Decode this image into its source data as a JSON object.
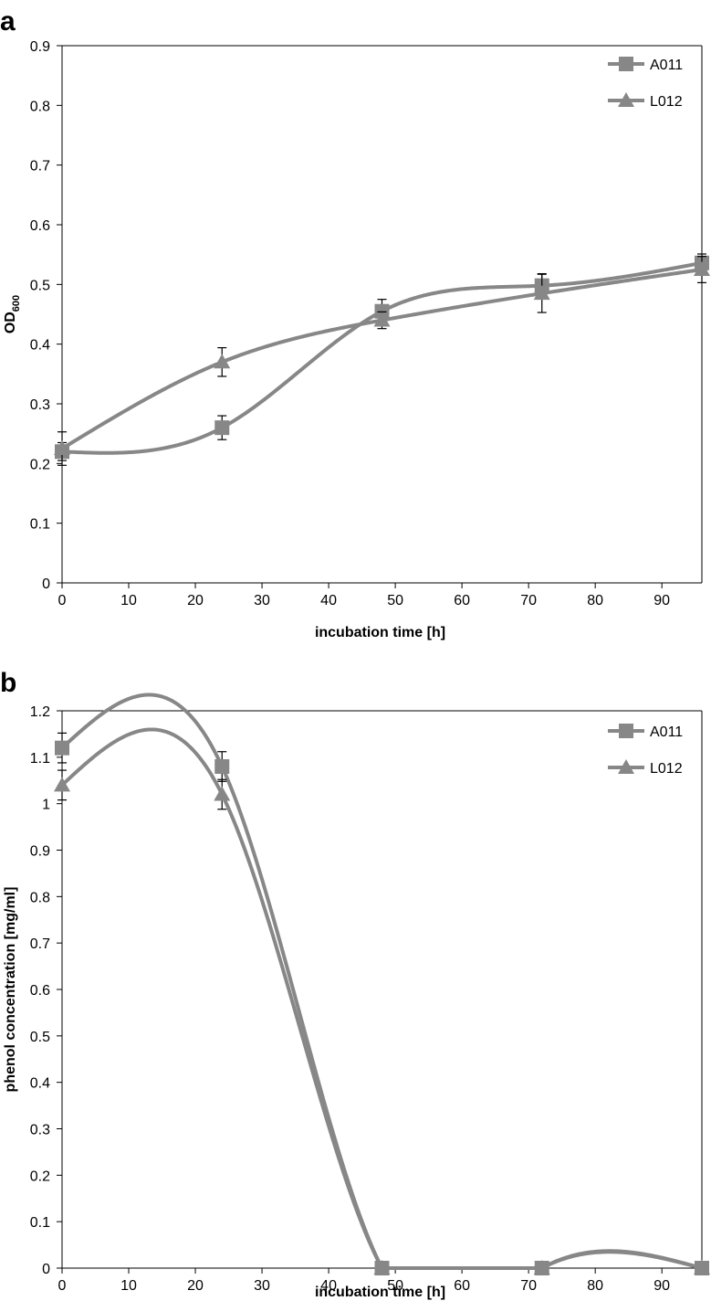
{
  "chart_data": [
    {
      "type": "line",
      "panel": "a",
      "xlabel": "incubation time [h]",
      "ylabel": "OD",
      "ylabel_sub": "600",
      "xlim": [
        0,
        96
      ],
      "ylim": [
        0,
        0.9
      ],
      "xticks": [
        0,
        10,
        20,
        30,
        40,
        50,
        60,
        70,
        80,
        90
      ],
      "yticks": [
        0,
        0.1,
        0.2,
        0.3,
        0.4,
        0.5,
        0.6,
        0.7,
        0.8,
        0.9
      ],
      "legend_position": "top-right",
      "grid": false,
      "series": [
        {
          "name": "A011",
          "marker": "square",
          "color": "#878787",
          "x": [
            0,
            24,
            48,
            72,
            96
          ],
          "values": [
            0.22,
            0.26,
            0.455,
            0.498,
            0.536
          ],
          "err": [
            0.015,
            0.02,
            0.02,
            0.02,
            0.015
          ]
        },
        {
          "name": "L012",
          "marker": "triangle",
          "color": "#878787",
          "x": [
            0,
            24,
            48,
            72,
            96
          ],
          "values": [
            0.225,
            0.37,
            0.44,
            0.485,
            0.525
          ],
          "err": [
            0.028,
            0.024,
            0.014,
            0.032,
            0.022
          ]
        }
      ]
    },
    {
      "type": "line",
      "panel": "b",
      "xlabel": "incubation time [h]",
      "ylabel": "phenol concentration [mg/ml]",
      "ylabel_sub": "",
      "xlim": [
        0,
        96
      ],
      "ylim": [
        0,
        1.2
      ],
      "xticks": [
        0,
        10,
        20,
        30,
        40,
        50,
        60,
        70,
        80,
        90
      ],
      "yticks": [
        0,
        0.1,
        0.2,
        0.3,
        0.4,
        0.5,
        0.6,
        0.7,
        0.8,
        0.9,
        1,
        1.1,
        1.2
      ],
      "legend_position": "top-right",
      "grid": false,
      "series": [
        {
          "name": "A011",
          "marker": "square",
          "color": "#878787",
          "x": [
            0,
            24,
            48,
            72,
            96
          ],
          "values": [
            1.12,
            1.08,
            0,
            0,
            0
          ],
          "err": [
            0.032,
            0.032,
            0,
            0,
            0
          ]
        },
        {
          "name": "L012",
          "marker": "triangle",
          "color": "#878787",
          "x": [
            0,
            24,
            48,
            72,
            96
          ],
          "values": [
            1.04,
            1.02,
            0,
            0,
            0
          ],
          "err": [
            0.032,
            0.032,
            0,
            0,
            0
          ]
        }
      ]
    }
  ]
}
